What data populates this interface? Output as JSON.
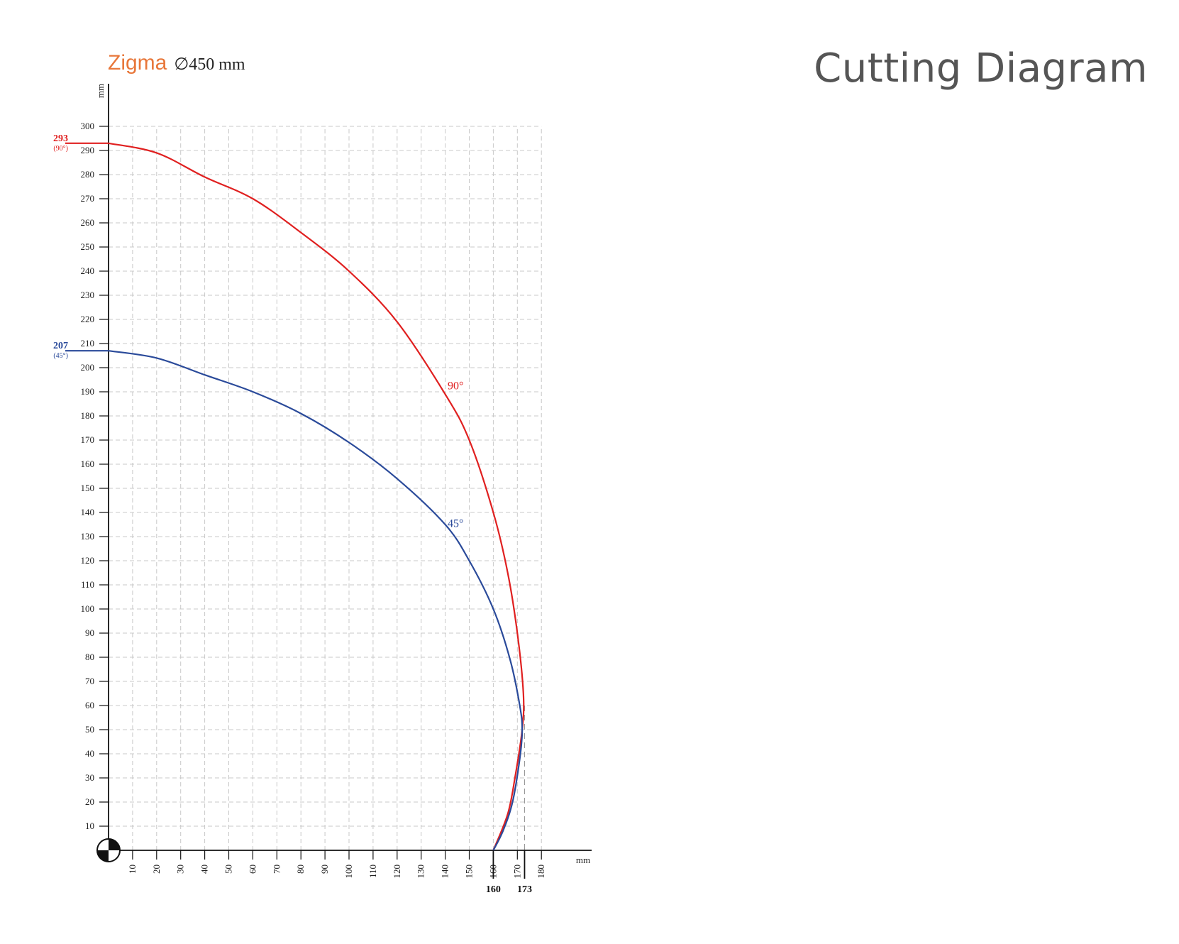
{
  "header": {
    "title": "Cutting Diagram",
    "brand": "Zigma",
    "spec": "∅450 mm"
  },
  "chart_data": {
    "type": "line",
    "xlabel": "mm",
    "ylabel": "mm",
    "xlim": [
      0,
      180
    ],
    "ylim": [
      0,
      300
    ],
    "x_ticks": [
      10,
      20,
      30,
      40,
      50,
      60,
      70,
      80,
      90,
      100,
      110,
      120,
      130,
      140,
      150,
      160,
      170,
      180
    ],
    "y_ticks": [
      10,
      20,
      30,
      40,
      50,
      60,
      70,
      80,
      90,
      100,
      110,
      120,
      130,
      140,
      150,
      160,
      170,
      180,
      190,
      200,
      210,
      220,
      230,
      240,
      250,
      260,
      270,
      280,
      290,
      300
    ],
    "grid": true,
    "series": [
      {
        "name": "90°",
        "color": "#e02020",
        "points": [
          [
            0,
            293
          ],
          [
            20,
            289
          ],
          [
            40,
            279
          ],
          [
            60,
            270
          ],
          [
            80,
            256
          ],
          [
            100,
            240
          ],
          [
            120,
            219
          ],
          [
            140,
            189
          ],
          [
            150,
            170
          ],
          [
            160,
            140
          ],
          [
            166,
            115
          ],
          [
            170,
            90
          ],
          [
            172.5,
            65
          ],
          [
            172,
            50
          ],
          [
            169,
            30
          ],
          [
            166,
            15
          ],
          [
            160,
            0
          ]
        ]
      },
      {
        "name": "45°",
        "color": "#2a4a9a",
        "points": [
          [
            0,
            207
          ],
          [
            20,
            204
          ],
          [
            40,
            197
          ],
          [
            60,
            190
          ],
          [
            80,
            181
          ],
          [
            100,
            169
          ],
          [
            120,
            154
          ],
          [
            140,
            135
          ],
          [
            150,
            120
          ],
          [
            160,
            100
          ],
          [
            167,
            79
          ],
          [
            171,
            60
          ],
          [
            172,
            50
          ],
          [
            171,
            38
          ],
          [
            168,
            20
          ],
          [
            164,
            8
          ],
          [
            160,
            0
          ]
        ]
      }
    ],
    "callouts": {
      "y": [
        {
          "value": 293,
          "label": "293",
          "sub": "(90°)",
          "color": "#e02020"
        },
        {
          "value": 207,
          "label": "207",
          "sub": "(45°)",
          "color": "#2a4a9a"
        }
      ],
      "x": [
        {
          "value": 160,
          "label": "160"
        },
        {
          "value": 173,
          "label": "173"
        }
      ]
    },
    "curve_labels": [
      {
        "text": "90°",
        "color": "#e02020",
        "x": 141,
        "y": 191
      },
      {
        "text": "45°",
        "color": "#2a4a9a",
        "x": 141,
        "y": 134
      }
    ]
  }
}
